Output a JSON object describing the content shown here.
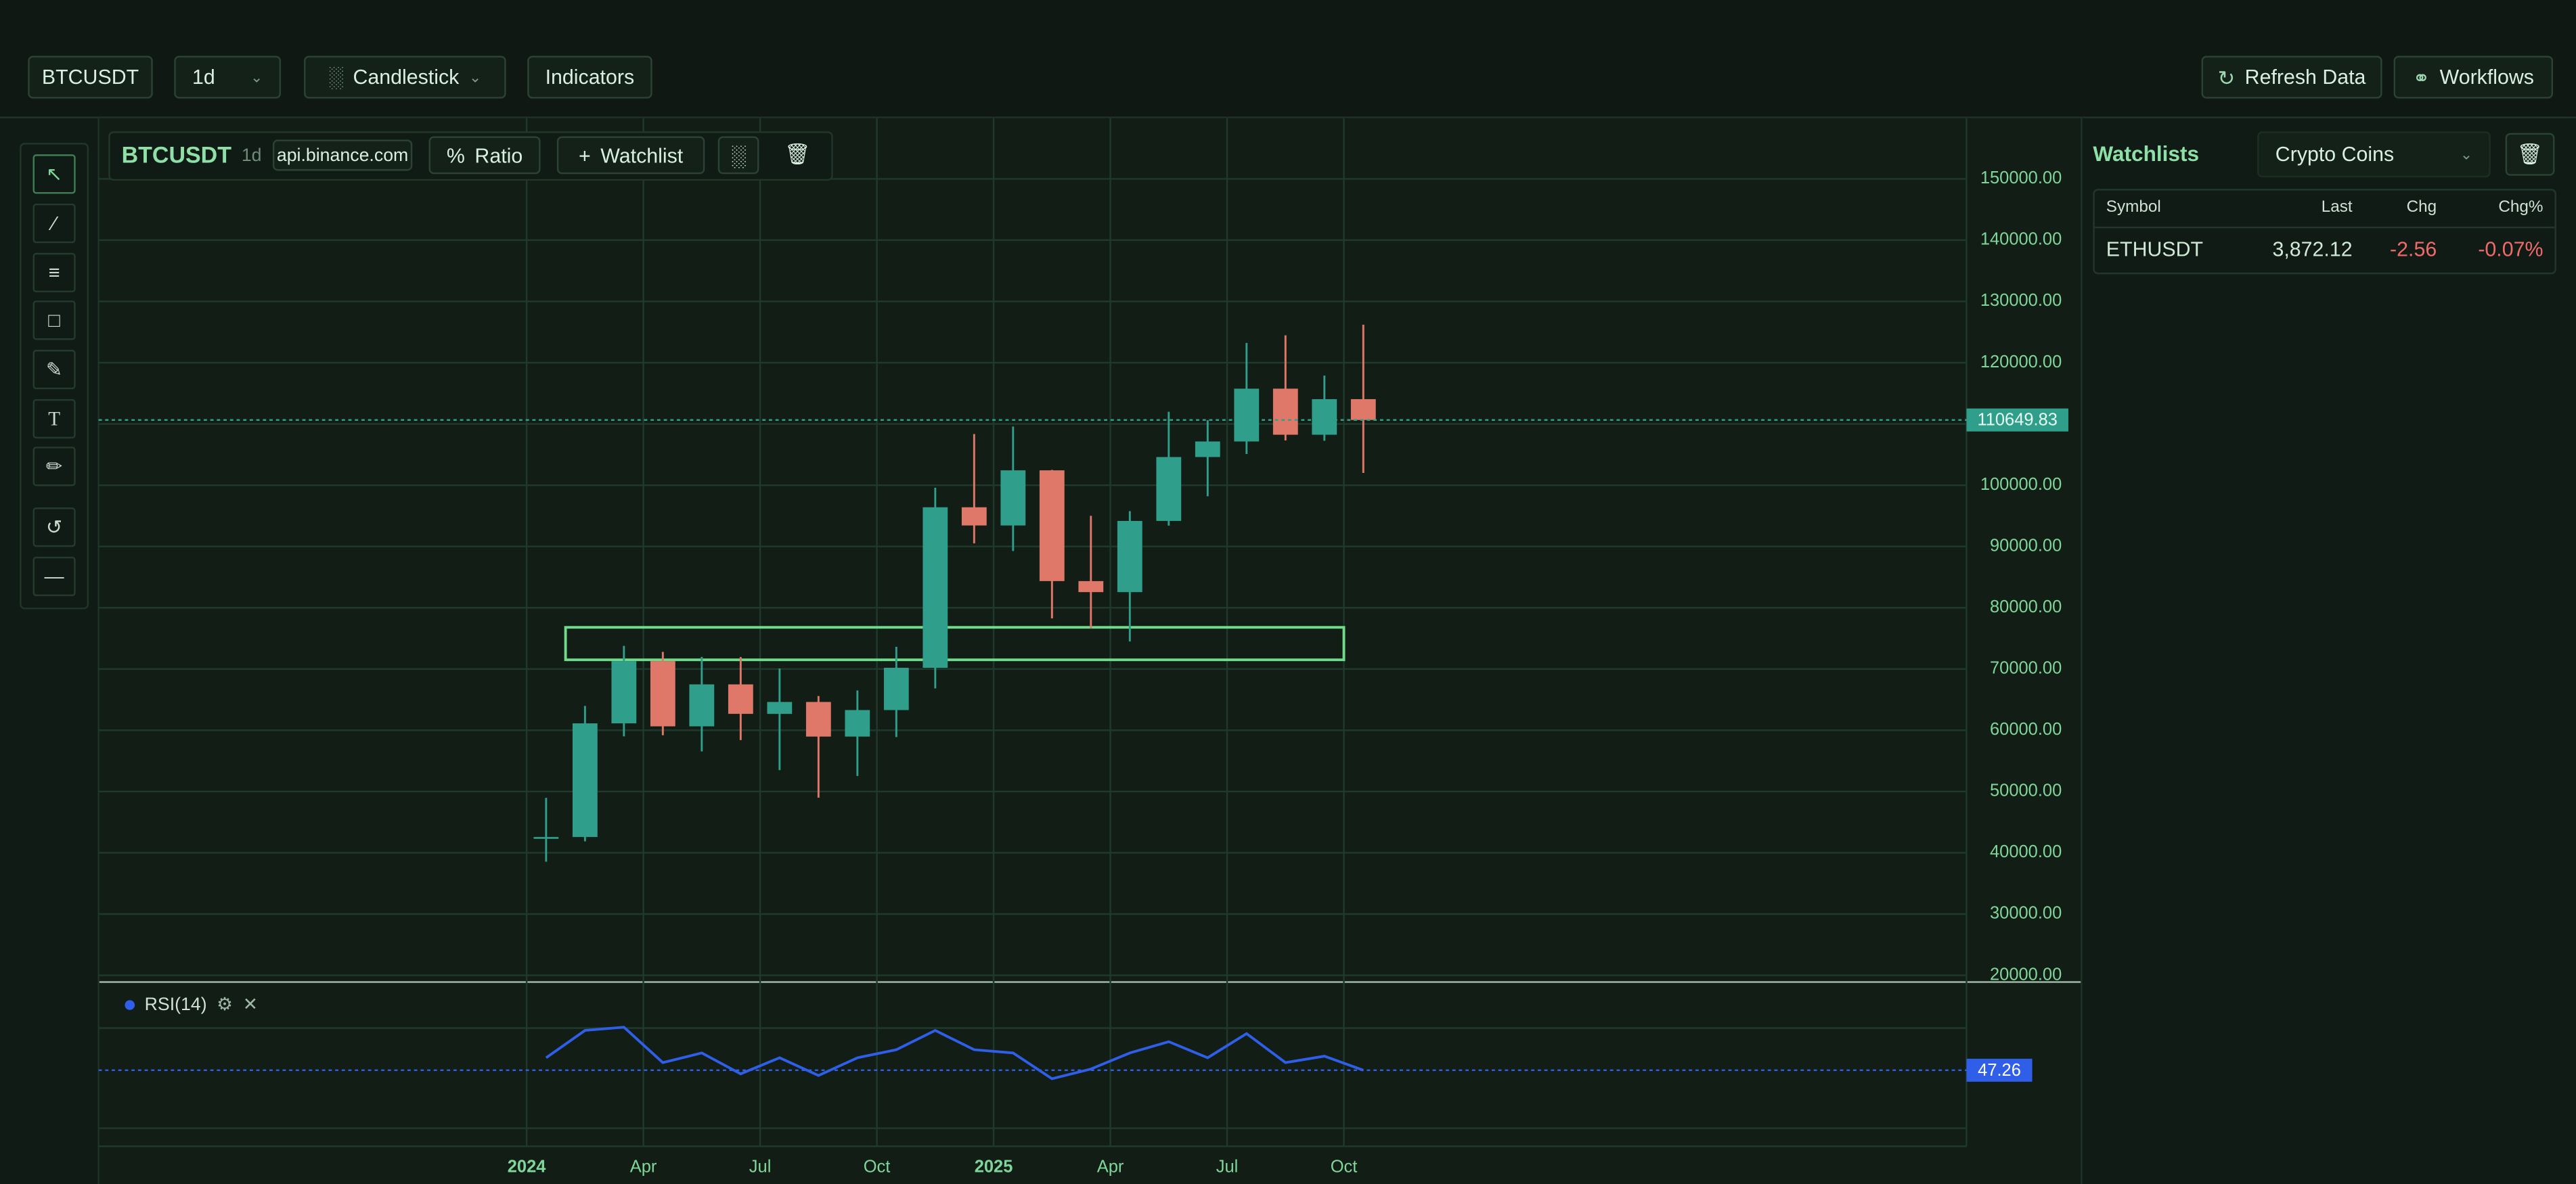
{
  "toolbar": {
    "symbol": "BTCUSDT",
    "interval": "1d",
    "chart_type": "Candlestick",
    "indicators": "Indicators",
    "refresh": "Refresh Data",
    "workflows": "Workflows"
  },
  "chart_header": {
    "symbol": "BTCUSDT",
    "interval": "1d",
    "source": "api.binance.com",
    "ratio": "Ratio",
    "watchlist": "Watchlist"
  },
  "chart_data": {
    "type": "candlestick",
    "grid": true,
    "up_color": "#2f9e8a",
    "down_color": "#e0786a",
    "x": [
      "2024-01",
      "2024-02",
      "2024-03",
      "2024-04",
      "2024-05",
      "2024-06",
      "2024-07",
      "2024-08",
      "2024-09",
      "2024-10",
      "2024-11",
      "2024-12",
      "2025-01",
      "2025-02",
      "2025-03",
      "2025-04",
      "2025-05",
      "2025-06",
      "2025-07",
      "2025-08",
      "2025-09",
      "2025-10"
    ],
    "open": [
      42280,
      42580,
      61130,
      71290,
      60640,
      67490,
      62680,
      64620,
      58970,
      63300,
      70200,
      96400,
      93430,
      102430,
      84350,
      82550,
      94170,
      104600,
      107140,
      115760,
      108240,
      114050
    ],
    "high": [
      48970,
      63970,
      73780,
      72800,
      71980,
      71950,
      70080,
      65590,
      66500,
      73620,
      99590,
      108350,
      109590,
      102500,
      95000,
      95760,
      111980,
      110600,
      123220,
      124470,
      117900,
      126200
    ],
    "low": [
      38550,
      41880,
      59000,
      59190,
      56550,
      58400,
      53500,
      49000,
      52550,
      58900,
      66830,
      90500,
      89260,
      78260,
      76600,
      74500,
      93400,
      98200,
      105100,
      107300,
      107250,
      102000
    ],
    "close": [
      42580,
      61130,
      71290,
      60640,
      67490,
      62680,
      64620,
      58970,
      63300,
      70200,
      96400,
      93430,
      102430,
      84350,
      82550,
      94170,
      104600,
      107140,
      115760,
      108240,
      114050,
      110649.83
    ],
    "last_price": 110649.83,
    "xlim": [
      "2023-02",
      "2027-02"
    ],
    "xticks": [
      {
        "value": "2024-01",
        "label": "2024"
      },
      {
        "value": "2024-04",
        "label": "Apr"
      },
      {
        "value": "2024-07",
        "label": "Jul"
      },
      {
        "value": "2024-10",
        "label": "Oct"
      },
      {
        "value": "2025-01",
        "label": "2025"
      },
      {
        "value": "2025-04",
        "label": "Apr"
      },
      {
        "value": "2025-07",
        "label": "Jul"
      },
      {
        "value": "2025-10",
        "label": "Oct"
      }
    ],
    "ylim": [
      18900,
      159900
    ],
    "yticks": [
      {
        "value": 20000,
        "label": "20000.00"
      },
      {
        "value": 30000,
        "label": "30000.00"
      },
      {
        "value": 40000,
        "label": "40000.00"
      },
      {
        "value": 50000,
        "label": "50000.00"
      },
      {
        "value": 60000,
        "label": "60000.00"
      },
      {
        "value": 70000,
        "label": "70000.00"
      },
      {
        "value": 80000,
        "label": "80000.00"
      },
      {
        "value": 90000,
        "label": "90000.00"
      },
      {
        "value": 100000,
        "label": "100000.00"
      },
      {
        "value": 110000,
        "label": "110000.00"
      },
      {
        "value": 120000,
        "label": "120000.00"
      },
      {
        "value": 130000,
        "label": "130000.00"
      },
      {
        "value": 140000,
        "label": "140000.00"
      },
      {
        "value": 150000,
        "label": "150000.00"
      }
    ],
    "drawing": {
      "price_range": [
        71500,
        76800
      ],
      "time_range": [
        "2024-02",
        "2025-10"
      ],
      "color": "#6fdc8c"
    },
    "rsi": {
      "name": "RSI(14)",
      "color": "#2f5fe8",
      "ylim": [
        0,
        100
      ],
      "last": 47.26,
      "values": [
        55,
        72,
        74,
        52,
        58,
        45,
        55,
        44,
        55,
        60,
        72,
        60,
        58,
        42,
        48,
        58,
        65,
        55,
        70,
        52,
        56,
        47.26
      ]
    }
  },
  "watchlist_panel": {
    "title": "Watchlists",
    "list": "Crypto Coins",
    "table": {
      "columns": [
        "Symbol",
        "Last",
        "Chg",
        "Chg%"
      ],
      "rows": [
        [
          "ETHUSDT",
          "3,872.12",
          "-2.56",
          "-0.07%"
        ]
      ]
    }
  }
}
